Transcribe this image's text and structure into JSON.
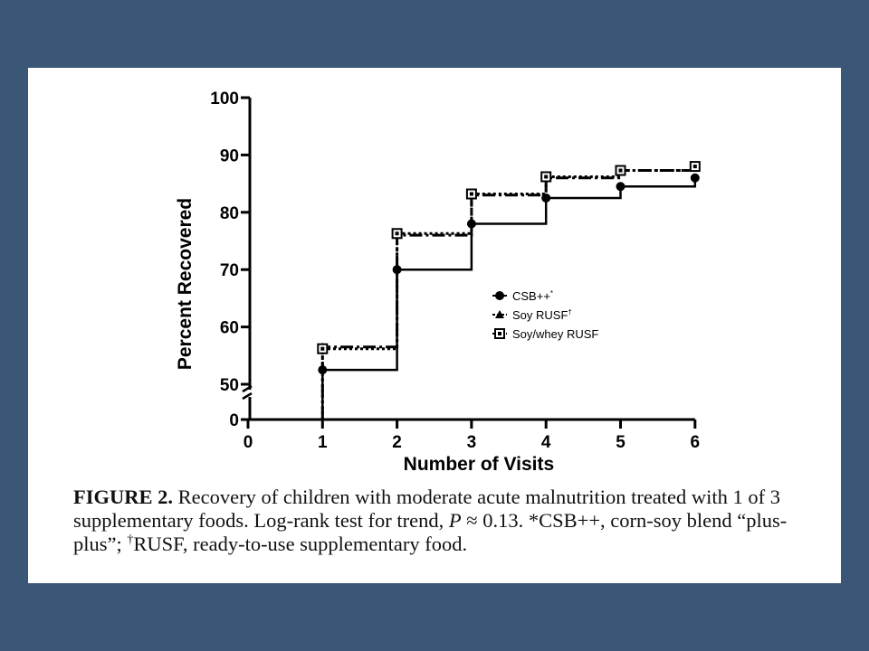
{
  "chart_data": {
    "type": "line",
    "subtype": "step (Kaplan-Meier style)",
    "xlabel": "Number of Visits",
    "ylabel": "Percent Recovered",
    "x_ticks": [
      "0",
      "1",
      "2",
      "3",
      "4",
      "5",
      "6"
    ],
    "y_ticks": [
      "0",
      "50",
      "60",
      "70",
      "80",
      "90",
      "100"
    ],
    "xlim": [
      0,
      6
    ],
    "ylim": [
      50,
      100
    ],
    "y_axis_break": "0 to 50",
    "grid": false,
    "legend_position": "center-right",
    "x": [
      1,
      2,
      3,
      4,
      5,
      6
    ],
    "series": [
      {
        "name": "CSB++",
        "name_superscript": "*",
        "line_style": "solid",
        "marker": "filled circle",
        "values": [
          52.5,
          70.0,
          78.0,
          82.5,
          84.5,
          86.0
        ]
      },
      {
        "name": "Soy RUSF",
        "name_superscript": "†",
        "line_style": "dash-dot",
        "marker": "filled triangle",
        "values": [
          56.5,
          76.0,
          83.0,
          86.0,
          87.3,
          87.8
        ]
      },
      {
        "name": "Soy/whey RUSF",
        "name_superscript": "",
        "line_style": "dotted",
        "marker": "half-filled square",
        "values": [
          56.2,
          76.3,
          83.2,
          86.2,
          87.3,
          88.0
        ]
      }
    ]
  },
  "caption": {
    "figure_label": "FIGURE 2.",
    "text_1": " Recovery of children with moderate acute malnutrition treated with 1 of 3 supplementary foods. Log-rank test for trend, ",
    "p_symbol": "P",
    "text_2": " ≈ 0.13. *CSB++, corn-soy blend “plus-plus”; ",
    "dagger": "†",
    "text_3": "RUSF, ready-to-use supplementary food."
  },
  "colors": {
    "background": "#3b5778",
    "panel": "#ffffff",
    "ink": "#000000"
  }
}
